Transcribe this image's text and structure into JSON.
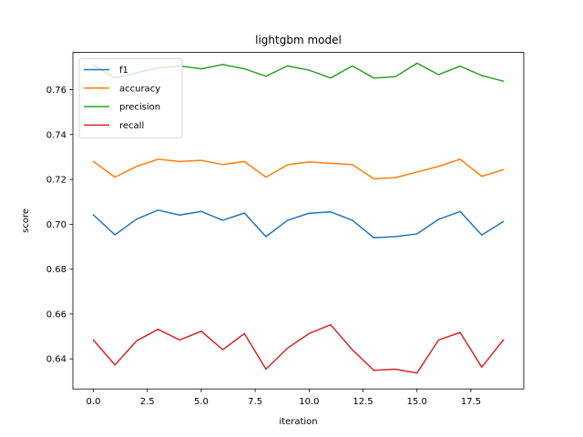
{
  "chart_data": {
    "type": "line",
    "title": "lightgbm model",
    "xlabel": "iteration",
    "ylabel": "score",
    "xlim": [
      -0.95,
      19.95
    ],
    "ylim": [
      0.6266,
      0.7766
    ],
    "xticks": [
      0.0,
      2.5,
      5.0,
      7.5,
      10.0,
      12.5,
      15.0,
      17.5
    ],
    "xtick_labels": [
      "0.0",
      "2.5",
      "5.0",
      "7.5",
      "10.0",
      "12.5",
      "15.0",
      "17.5"
    ],
    "yticks": [
      0.64,
      0.66,
      0.68,
      0.7,
      0.72,
      0.74,
      0.76
    ],
    "ytick_labels": [
      "0.64",
      "0.66",
      "0.68",
      "0.70",
      "0.72",
      "0.74",
      "0.76"
    ],
    "grid": false,
    "legend": "top-left",
    "x": [
      0,
      1,
      2,
      3,
      4,
      5,
      6,
      7,
      8,
      9,
      10,
      11,
      12,
      13,
      14,
      15,
      16,
      17,
      18,
      19
    ],
    "series": [
      {
        "name": "f1",
        "color": "#1f77b4",
        "values": [
          0.7042,
          0.6953,
          0.7023,
          0.7063,
          0.7041,
          0.7057,
          0.7018,
          0.705,
          0.6945,
          0.7018,
          0.7049,
          0.7055,
          0.7018,
          0.694,
          0.6945,
          0.6957,
          0.7022,
          0.7057,
          0.6952,
          0.7012
        ]
      },
      {
        "name": "accuracy",
        "color": "#ff7f0e",
        "values": [
          0.728,
          0.721,
          0.7258,
          0.729,
          0.728,
          0.7285,
          0.7266,
          0.728,
          0.721,
          0.7265,
          0.7278,
          0.7272,
          0.7266,
          0.7203,
          0.7208,
          0.7233,
          0.7258,
          0.729,
          0.7214,
          0.7243
        ]
      },
      {
        "name": "precision",
        "color": "#2ca02c",
        "values": [
          0.771,
          0.7652,
          0.7675,
          0.7697,
          0.7706,
          0.7693,
          0.7712,
          0.7693,
          0.766,
          0.7706,
          0.7687,
          0.7652,
          0.7706,
          0.7652,
          0.7658,
          0.7718,
          0.7667,
          0.7705,
          0.7663,
          0.7638
        ]
      },
      {
        "name": "recall",
        "color": "#d62728",
        "values": [
          0.6484,
          0.6373,
          0.648,
          0.6532,
          0.6484,
          0.6523,
          0.6441,
          0.6513,
          0.6354,
          0.6448,
          0.6513,
          0.6552,
          0.6441,
          0.6349,
          0.6354,
          0.6337,
          0.6484,
          0.6518,
          0.6363,
          0.6484
        ]
      }
    ]
  }
}
